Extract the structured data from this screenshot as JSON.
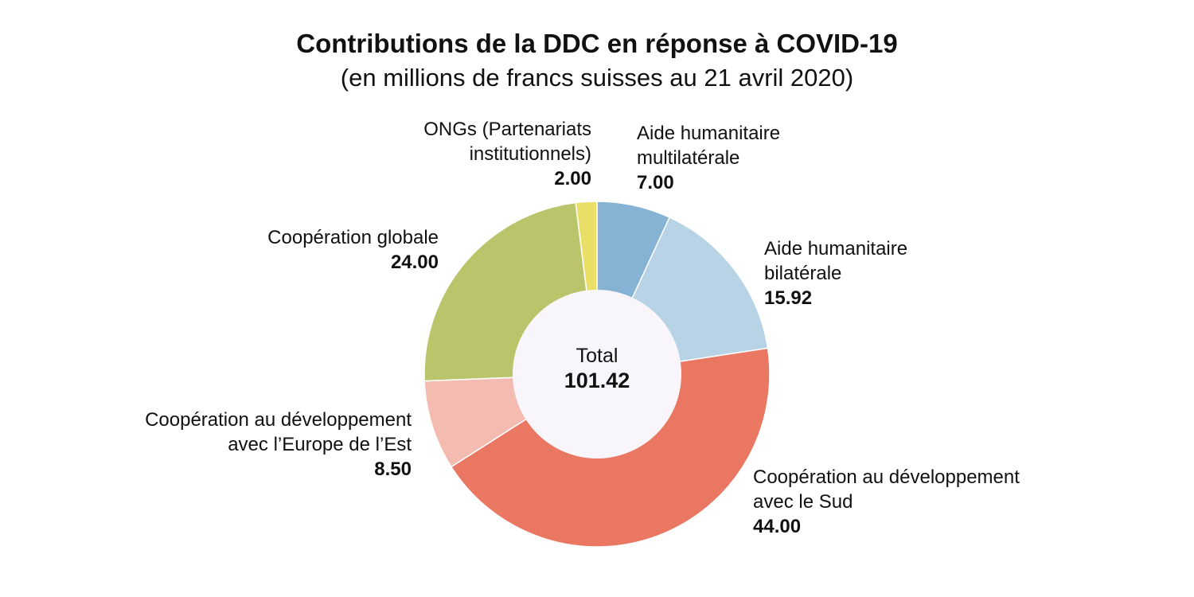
{
  "chart_data": {
    "type": "pie",
    "donut": true,
    "title": "Contributions de la DDC en réponse à COVID-19",
    "subtitle": "(en millions de francs suisses au 21 avril 2020)",
    "center_label": "Total",
    "center_value": "101.42",
    "slices": [
      {
        "label_lines": [
          "Aide humanitaire",
          "multilatérale"
        ],
        "value": 7.0,
        "value_label": "7.00",
        "color": "#86b3d3"
      },
      {
        "label_lines": [
          "Aide humanitaire",
          "bilatérale"
        ],
        "value": 15.92,
        "value_label": "15.92",
        "color": "#b8d2e6"
      },
      {
        "label_lines": [
          "Coopération au développement",
          "avec le Sud"
        ],
        "value": 44.0,
        "value_label": "44.00",
        "color": "#e97762"
      },
      {
        "label_lines": [
          "Coopération au développement",
          "avec l’Europe de l’Est"
        ],
        "value": 8.5,
        "value_label": "8.50",
        "color": "#f4bbb0"
      },
      {
        "label_lines": [
          "Coopération globale"
        ],
        "value": 24.0,
        "value_label": "24.00",
        "color": "#bac46a"
      },
      {
        "label_lines": [
          "ONGs (Partenariats",
          "institutionnels)"
        ],
        "value": 2.0,
        "value_label": "2.00",
        "color": "#e9de66"
      }
    ],
    "start_angle": "12 o'clock",
    "direction": "clockwise",
    "center_fill": "#f8f6fa"
  }
}
